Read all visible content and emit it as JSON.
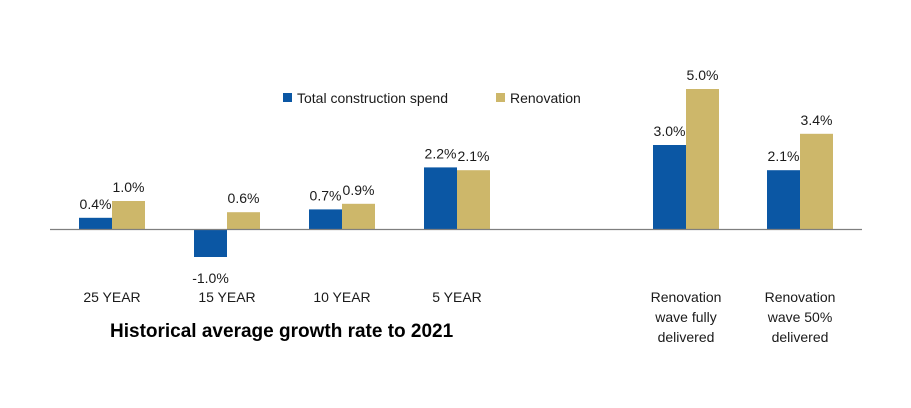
{
  "chart_data": {
    "type": "bar",
    "categories": [
      [
        "25 YEAR"
      ],
      [
        "15 YEAR"
      ],
      [
        "10 YEAR"
      ],
      [
        "5 YEAR"
      ],
      [
        "Renovation",
        "wave fully",
        "delivered"
      ],
      [
        "Renovation",
        "wave 50%",
        "delivered"
      ]
    ],
    "series": [
      {
        "name": "Total construction spend",
        "color": "#0b57a4",
        "values": [
          0.4,
          -1.0,
          0.7,
          2.2,
          3.0,
          2.1
        ],
        "labels": [
          "0.4%",
          "-1.0%",
          "0.7%",
          "2.2%",
          "3.0%",
          "2.1%"
        ]
      },
      {
        "name": "Renovation",
        "color": "#cdb76a",
        "values": [
          1.0,
          0.6,
          0.9,
          2.1,
          5.0,
          3.4
        ],
        "labels": [
          "1.0%",
          "0.6%",
          "0.9%",
          "2.1%",
          "5.0%",
          "3.4%"
        ]
      }
    ],
    "legend_position": "top",
    "grid": false,
    "ylim": [
      -1.2,
      5.6
    ]
  },
  "footer_text": "Historical average growth rate to 2021"
}
